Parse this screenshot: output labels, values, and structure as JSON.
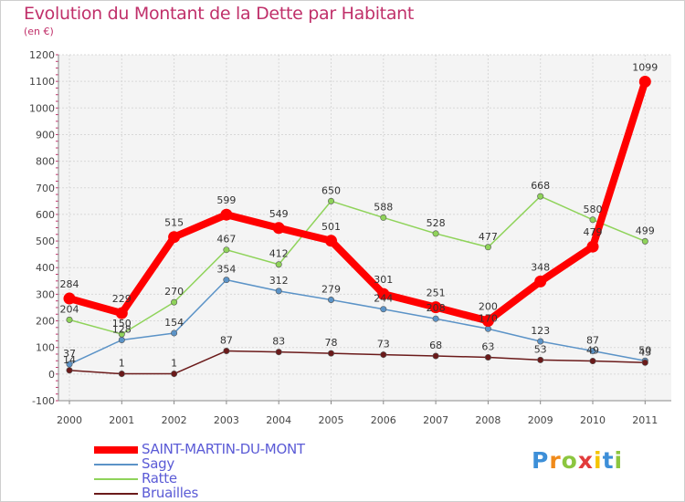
{
  "title": "Evolution du Montant de la Dette par Habitant",
  "subtitle": "(en €)",
  "chart_data": {
    "type": "line",
    "title": "Evolution du Montant de la Dette par Habitant",
    "ylabel": "(en €)",
    "xlabel": "",
    "ylim": [
      -100,
      1200
    ],
    "yticks": [
      -100,
      0,
      100,
      200,
      300,
      400,
      500,
      600,
      700,
      800,
      900,
      1000,
      1100,
      1200
    ],
    "categories": [
      "2000",
      "2001",
      "2002",
      "2003",
      "2004",
      "2005",
      "2006",
      "2007",
      "2008",
      "2009",
      "2010",
      "2011"
    ],
    "grid": true,
    "series": [
      {
        "name": "SAINT-MARTIN-DU-MONT",
        "color": "#ff0000",
        "width": 8,
        "values": [
          284,
          229,
          515,
          599,
          549,
          501,
          301,
          251,
          200,
          348,
          479,
          1099
        ],
        "labels": [
          "284",
          "229",
          "515",
          "599",
          "549",
          "501",
          "301",
          "251",
          "200",
          "348",
          "479",
          "1099"
        ]
      },
      {
        "name": "Sagy",
        "color": "#5b93c7",
        "width": 1.5,
        "values": [
          37,
          128,
          154,
          354,
          312,
          279,
          244,
          208,
          170,
          123,
          87,
          50
        ],
        "labels": [
          "37",
          "128",
          "154",
          "354",
          "312",
          "279",
          "244",
          "208",
          "170",
          "123",
          "87",
          "50"
        ]
      },
      {
        "name": "Ratte",
        "color": "#8fd35a",
        "width": 1.5,
        "values": [
          204,
          150,
          270,
          467,
          412,
          650,
          588,
          528,
          477,
          668,
          580,
          499
        ],
        "labels": [
          "204",
          "150",
          "270",
          "467",
          "412",
          "650",
          "588",
          "528",
          "477",
          "668",
          "580",
          "499"
        ]
      },
      {
        "name": "Bruailles",
        "color": "#6b1a1a",
        "width": 1.5,
        "values": [
          14,
          1,
          1,
          87,
          83,
          78,
          73,
          68,
          63,
          53,
          49,
          43
        ],
        "labels": [
          "14",
          "1",
          "1",
          "87",
          "83",
          "78",
          "73",
          "68",
          "63",
          "53",
          "49",
          "43"
        ]
      }
    ]
  },
  "logo": {
    "letters": [
      "P",
      "r",
      "o",
      "x",
      "i",
      "t",
      "i"
    ],
    "colors": [
      "#3d8fd8",
      "#f08a1a",
      "#8cc63f",
      "#e23b3b",
      "#f5c400",
      "#3d8fd8",
      "#8cc63f"
    ]
  }
}
